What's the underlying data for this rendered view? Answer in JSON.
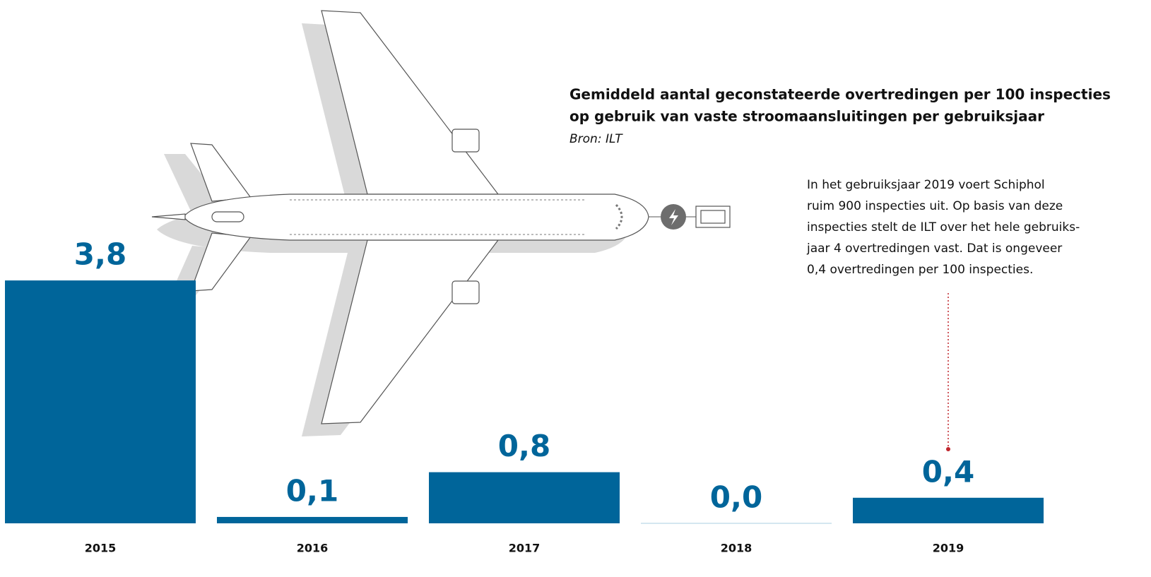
{
  "chart_data": {
    "type": "bar",
    "title": [
      "Gemiddeld aantal geconstateerde overtredingen per 100 inspecties",
      "op gebruik van vaste stroomaansluitingen per gebruiksjaar"
    ],
    "source": "Bron: ILT",
    "annotation": [
      "In het gebruiksjaar 2019 voert Schiphol",
      "ruim 900 inspecties uit. Op basis van deze",
      "inspecties stelt de ILT over het hele gebruiks-",
      "jaar 4 overtredingen vast. Dat is ongeveer",
      "0,4 overtredingen per 100 inspecties."
    ],
    "categories": [
      "2015",
      "2016",
      "2017",
      "2018",
      "2019"
    ],
    "values": [
      3.8,
      0.1,
      0.8,
      0.0,
      0.4
    ],
    "value_labels": [
      "3,8",
      "0,1",
      "0,8",
      "0,0",
      "0,4"
    ],
    "color": "#00659a"
  }
}
